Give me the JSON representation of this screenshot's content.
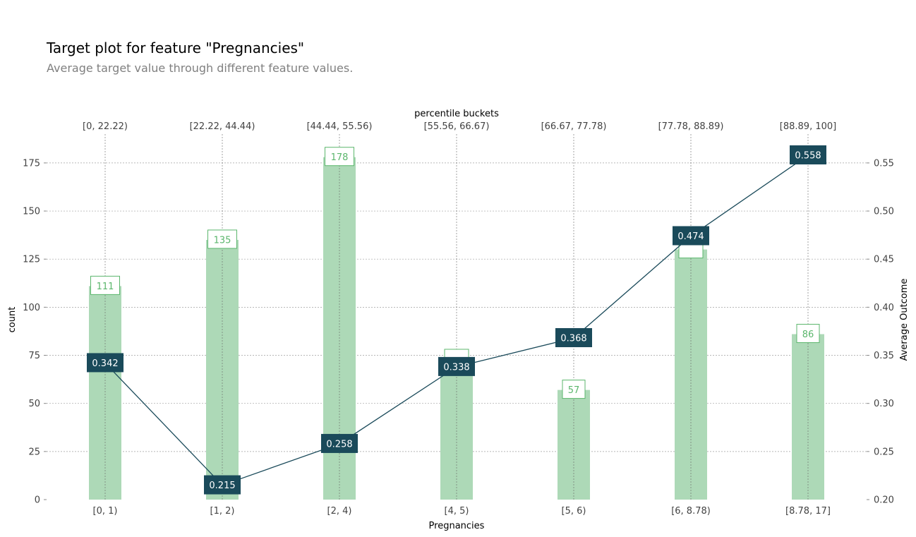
{
  "title": "Target plot for feature \"Pregnancies\"",
  "subtitle": "Average target value through different feature values.",
  "colors": {
    "bar_fill": "#add9b7",
    "count_label_border": "#5bb66c",
    "count_label_text": "#5bb66c",
    "line": "#1a4a5a",
    "line_label_bg": "#1a4a5a",
    "line_label_text": "#ffffff",
    "grid": "#a0a0a0",
    "tick_text": "#424242"
  },
  "chart_data": {
    "type": "bar",
    "title": "Target plot for feature \"Pregnancies\"",
    "subtitle": "Average target value through different feature values.",
    "xlabel": "Pregnancies",
    "x2label": "percentile buckets",
    "ylabel_left": "count",
    "ylabel_right": "Average Outcome",
    "categories": [
      "[0, 1)",
      "[1, 2)",
      "[2, 4)",
      "[4, 5)",
      "[5, 6)",
      "[6, 8.78)",
      "[8.78, 17]"
    ],
    "percentile_buckets": [
      "[0, 22.22)",
      "[22.22, 44.44)",
      "[44.44, 55.56)",
      "[55.56, 66.67)",
      "[66.67, 77.78)",
      "[77.78, 88.89)",
      "[88.89, 100]"
    ],
    "series": [
      {
        "name": "count",
        "type": "bar",
        "axis": "left",
        "values": [
          111,
          135,
          178,
          73,
          57,
          130,
          86
        ]
      },
      {
        "name": "Average Outcome",
        "type": "line",
        "axis": "right",
        "values": [
          0.342,
          0.215,
          0.258,
          0.338,
          0.368,
          0.474,
          0.558
        ]
      }
    ],
    "count_labels": [
      "111",
      "135",
      "178",
      "",
      "57",
      "",
      "86"
    ],
    "line_labels": [
      "0.342",
      "0.215",
      "0.258",
      "0.338",
      "0.368",
      "0.474",
      "0.558"
    ],
    "ylim_left": [
      0,
      190
    ],
    "yticks_left": [
      0,
      25,
      50,
      75,
      100,
      125,
      150,
      175
    ],
    "ylim_right": [
      0.2,
      0.58
    ],
    "yticks_right": [
      "0.20",
      "0.25",
      "0.30",
      "0.35",
      "0.40",
      "0.45",
      "0.50",
      "0.55"
    ],
    "grid": true
  }
}
